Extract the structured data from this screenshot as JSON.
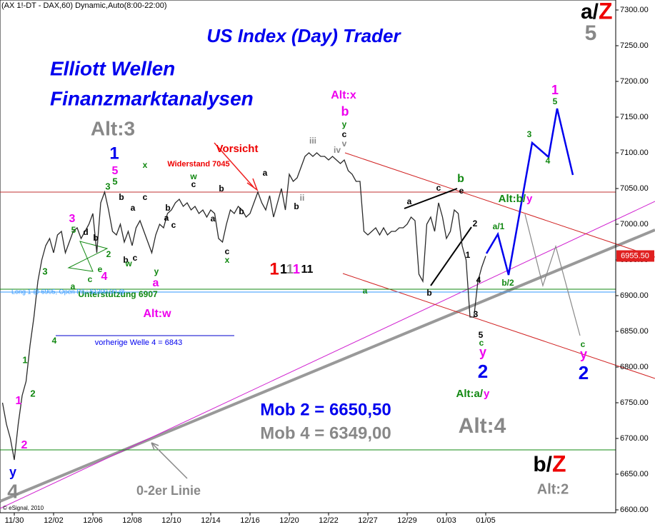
{
  "chart_data": {
    "type": "line",
    "title": "US Index (Day) Trader",
    "categories": [
      null,
      null,
      null,
      "11/30",
      null,
      null,
      null,
      null,
      null,
      null,
      null,
      null,
      null,
      "12/02",
      null,
      null,
      null,
      null,
      null,
      null,
      null,
      null,
      null,
      "12/06",
      null,
      null,
      null,
      null,
      null,
      null,
      null,
      null,
      null,
      "12/08",
      null,
      null,
      null,
      null,
      null,
      null,
      null,
      null,
      null,
      "12/10",
      null,
      null,
      null,
      null,
      null,
      null,
      null,
      null,
      null,
      "12/14",
      null,
      null,
      null,
      null,
      null,
      null,
      null,
      null,
      null,
      "12/16",
      null,
      null,
      null,
      null,
      null,
      null,
      null,
      null,
      null,
      "12/20",
      null,
      null,
      null,
      null,
      null,
      null,
      null,
      null,
      null,
      "12/22",
      null,
      null,
      null,
      null,
      null,
      null,
      null,
      null,
      null,
      "12/27",
      null,
      null,
      null,
      null,
      null,
      null,
      null,
      null,
      null,
      "12/29",
      null,
      null,
      null,
      null,
      null,
      null,
      null,
      null,
      null,
      "01/03",
      null,
      null,
      null,
      null,
      null,
      null,
      null,
      null,
      null,
      "01/05"
    ],
    "values": [
      6750,
      6720,
      6700,
      6670,
      6720,
      6760,
      6780,
      6830,
      6870,
      6920,
      6950,
      6970,
      6980,
      6960,
      6985,
      6990,
      6960,
      6975,
      6990,
      6995,
      6980,
      6990,
      7000,
      7015,
      6960,
      7030,
      7045,
      7020,
      6990,
      6985,
      7000,
      6975,
      6990,
      6970,
      6995,
      7005,
      6990,
      6975,
      6960,
      6985,
      7000,
      6995,
      7015,
      7020,
      7030,
      7035,
      7025,
      7030,
      7020,
      7025,
      7015,
      7020,
      7010,
      7020,
      7015,
      6980,
      6975,
      7000,
      7020,
      7015,
      7025,
      7020,
      7010,
      7015,
      7030,
      7045,
      7030,
      7020,
      7040,
      7010,
      7030,
      7050,
      7020,
      7070,
      7060,
      7065,
      7080,
      7095,
      7100,
      7095,
      7100,
      7095,
      7095,
      7090,
      7095,
      7090,
      7085,
      7090,
      7075,
      7070,
      7060,
      7060,
      6990,
      6985,
      6990,
      6995,
      6985,
      6995,
      6985,
      6990,
      6990,
      6995,
      6995,
      7000,
      7010,
      7005,
      6930,
      6920,
      7000,
      7010,
      6990,
      7030,
      7010,
      6980,
      6990,
      7020,
      7015,
      6970,
      6950,
      6870,
      6870,
      6920,
      6940,
      6955.5
    ],
    "ylim": [
      6600,
      7300
    ],
    "yticks": [
      {
        "value": 7300,
        "label": "7300.00"
      },
      {
        "value": 7250,
        "label": "7250.00"
      },
      {
        "value": 7200,
        "label": "7200.00"
      },
      {
        "value": 7150,
        "label": "7150.00"
      },
      {
        "value": 7100,
        "label": "7100.00"
      },
      {
        "value": 7050,
        "label": "7050.00"
      },
      {
        "value": 7000,
        "label": "7000.00"
      },
      {
        "value": 6950,
        "label": "6950.00"
      },
      {
        "value": 6900,
        "label": "6900.00"
      },
      {
        "value": 6850,
        "label": "6850.00"
      },
      {
        "value": 6800,
        "label": "6800.00"
      },
      {
        "value": 6750,
        "label": "6750.00"
      },
      {
        "value": 6700,
        "label": "6700.00"
      },
      {
        "value": 6650,
        "label": "6650.00"
      },
      {
        "value": 6600,
        "label": "6600.00"
      }
    ],
    "last_price": {
      "value": 6955.5,
      "label": "6955.50"
    },
    "color": "#2a2a2a",
    "annotations": [
      "(AX 1!-DT - DAX,60) Dynamic,Auto(8:00-22:00)",
      "Elliott Wellen",
      "Finanzmarktanalysen",
      "a/",
      "Z",
      "5",
      "Alt:3",
      "1",
      "5",
      "5",
      "3",
      "b",
      "c",
      "a",
      "b",
      "a",
      "c",
      "x",
      "w",
      "c",
      "b",
      "a",
      "b",
      "c",
      "x",
      "a",
      "b",
      "ii",
      "iii",
      "iv",
      "v",
      "c",
      "y",
      "b",
      "Alt:x",
      "3",
      "5",
      "d",
      "b",
      "2",
      "4",
      "c",
      "e",
      "a",
      "3",
      "4",
      "1",
      "2",
      "1",
      "2",
      "y",
      "4",
      "b",
      "c",
      "w",
      "y",
      "a",
      "Alt:w",
      "Vorsicht",
      "Widerstand 7045",
      "1",
      "1",
      "1",
      "1",
      "11",
      "Unterstützung 6907",
      "Long 1 @ 6905, Open P/L: $1300.00 @",
      "vorherige Welle 4 = 6843",
      "a",
      "a",
      "b",
      "c",
      "e",
      "b",
      "2",
      "1",
      "4",
      "3",
      "5",
      "c",
      "y",
      "2",
      "Alt:a/",
      "y",
      "Mob 2 = 6650,50",
      "Mob 4 = 6349,00",
      "Alt:4",
      "b/",
      "Z",
      "Alt:2",
      "0-2er Linie",
      "© eSignal, 2010",
      "1",
      "5",
      "3",
      "4",
      "Alt:b/",
      "y",
      "a/1",
      "b/2",
      "c",
      "y",
      "2"
    ]
  }
}
